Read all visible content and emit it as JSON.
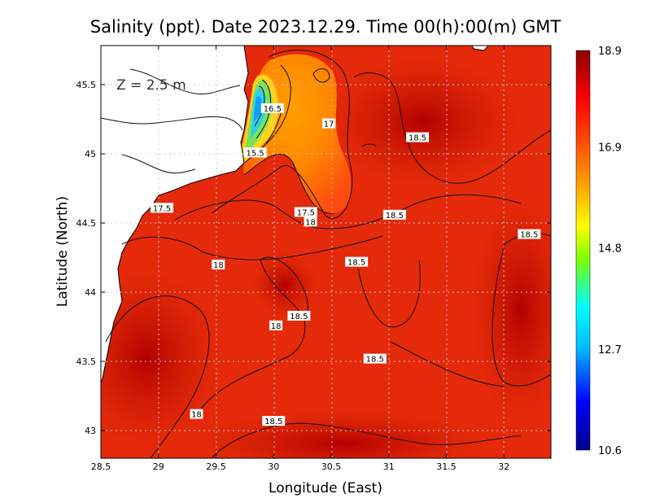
{
  "chart_data": {
    "type": "heatmap",
    "title": "Salinity (ppt). Date 2023.12.29. Time 00(h):00(m) GMT",
    "xlabel": "Longitude (East)",
    "ylabel": "Latitude (North)",
    "xlim": [
      28.5,
      32.4
    ],
    "ylim": [
      42.8,
      45.8
    ],
    "x_ticks": [
      "28.5",
      "29",
      "29.5",
      "30",
      "30.5",
      "31",
      "31.5",
      "32"
    ],
    "y_ticks": [
      "45.5",
      "45",
      "44.5",
      "44",
      "43.5",
      "43"
    ],
    "depth_label": "Z = 2.5 m",
    "colorbar": {
      "min": 10.6,
      "max": 18.9,
      "ticks": [
        "18.9",
        "16.9",
        "14.8",
        "12.7",
        "10.6"
      ],
      "colors": [
        "#00008b",
        "#0000ff",
        "#00bfff",
        "#00ffff",
        "#7fff00",
        "#ffff00",
        "#ffa500",
        "#ff4500",
        "#ff0000",
        "#8b0000"
      ]
    },
    "grid": true,
    "contour_labels": [
      {
        "text": "16.5",
        "lon": 29.99,
        "lat": 45.33
      },
      {
        "text": "17",
        "lon": 30.48,
        "lat": 45.22
      },
      {
        "text": "15.5",
        "lon": 29.84,
        "lat": 45.01
      },
      {
        "text": "18.5",
        "lon": 31.25,
        "lat": 45.12
      },
      {
        "text": "17.5",
        "lon": 29.03,
        "lat": 44.61
      },
      {
        "text": "17.5",
        "lon": 30.28,
        "lat": 44.58
      },
      {
        "text": "18",
        "lon": 30.32,
        "lat": 44.51
      },
      {
        "text": "18.5",
        "lon": 31.05,
        "lat": 44.56
      },
      {
        "text": "18.5",
        "lon": 32.22,
        "lat": 44.42
      },
      {
        "text": "18.5",
        "lon": 30.72,
        "lat": 44.22
      },
      {
        "text": "18",
        "lon": 29.52,
        "lat": 44.2
      },
      {
        "text": "18.5",
        "lon": 30.22,
        "lat": 43.83
      },
      {
        "text": "18",
        "lon": 30.02,
        "lat": 43.76
      },
      {
        "text": "18.5",
        "lon": 30.88,
        "lat": 43.52
      },
      {
        "text": "18",
        "lon": 29.33,
        "lat": 43.12
      },
      {
        "text": "18.5",
        "lon": 30.0,
        "lat": 43.07
      }
    ]
  }
}
